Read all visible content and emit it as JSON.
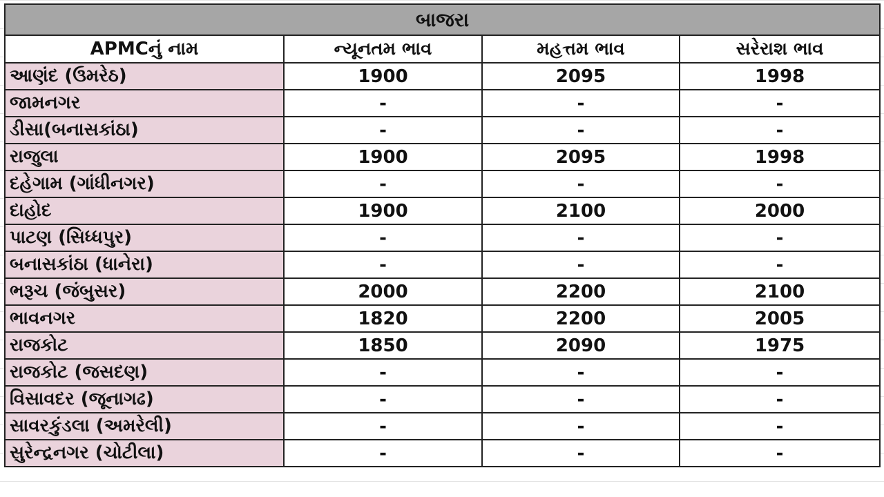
{
  "title": "બાજરા",
  "headers": [
    "APMCનું નામ",
    "ન્યૂનતમ ભાવ",
    "મહત્તમ ભાવ",
    "સરેરાશ ભાવ"
  ],
  "rows": [
    {
      "name": "આણંદ (ઉમરેઠ)",
      "min": "1900",
      "max": "2095",
      "avg": "1998"
    },
    {
      "name": "જામનગર",
      "min": "-",
      "max": "-",
      "avg": "-"
    },
    {
      "name": "ડીસા(બનાસકાંઠા)",
      "min": "-",
      "max": "-",
      "avg": "-"
    },
    {
      "name": "રાજુલા",
      "min": "1900",
      "max": "2095",
      "avg": "1998"
    },
    {
      "name": "દહેગામ (ગાંધીનગર)",
      "min": "-",
      "max": "-",
      "avg": "-"
    },
    {
      "name": "દાહોદ",
      "min": "1900",
      "max": "2100",
      "avg": "2000"
    },
    {
      "name": "પાટણ (સિધ્ધપુર)",
      "min": "-",
      "max": "-",
      "avg": "-"
    },
    {
      "name": "બનાસકાંઠા (ધાનેરા)",
      "min": "-",
      "max": "-",
      "avg": "-"
    },
    {
      "name": "ભરૂચ (જંબુસર)",
      "min": "2000",
      "max": "2200",
      "avg": "2100"
    },
    {
      "name": "ભાવનગર",
      "min": "1820",
      "max": "2200",
      "avg": "2005"
    },
    {
      "name": "રાજકોટ",
      "min": "1850",
      "max": "2090",
      "avg": "1975"
    },
    {
      "name": "રાજકોટ (જસદણ)",
      "min": "-",
      "max": "-",
      "avg": "-"
    },
    {
      "name": "વિસાવદર (જૂનાગઢ)",
      "min": "-",
      "max": "-",
      "avg": "-"
    },
    {
      "name": "સાવરકુંડલા (અમરેલી)",
      "min": "-",
      "max": "-",
      "avg": "-"
    },
    {
      "name": "સુરેન્દ્રનગર (ચોટીલા)",
      "min": "-",
      "max": "-",
      "avg": "-"
    }
  ]
}
